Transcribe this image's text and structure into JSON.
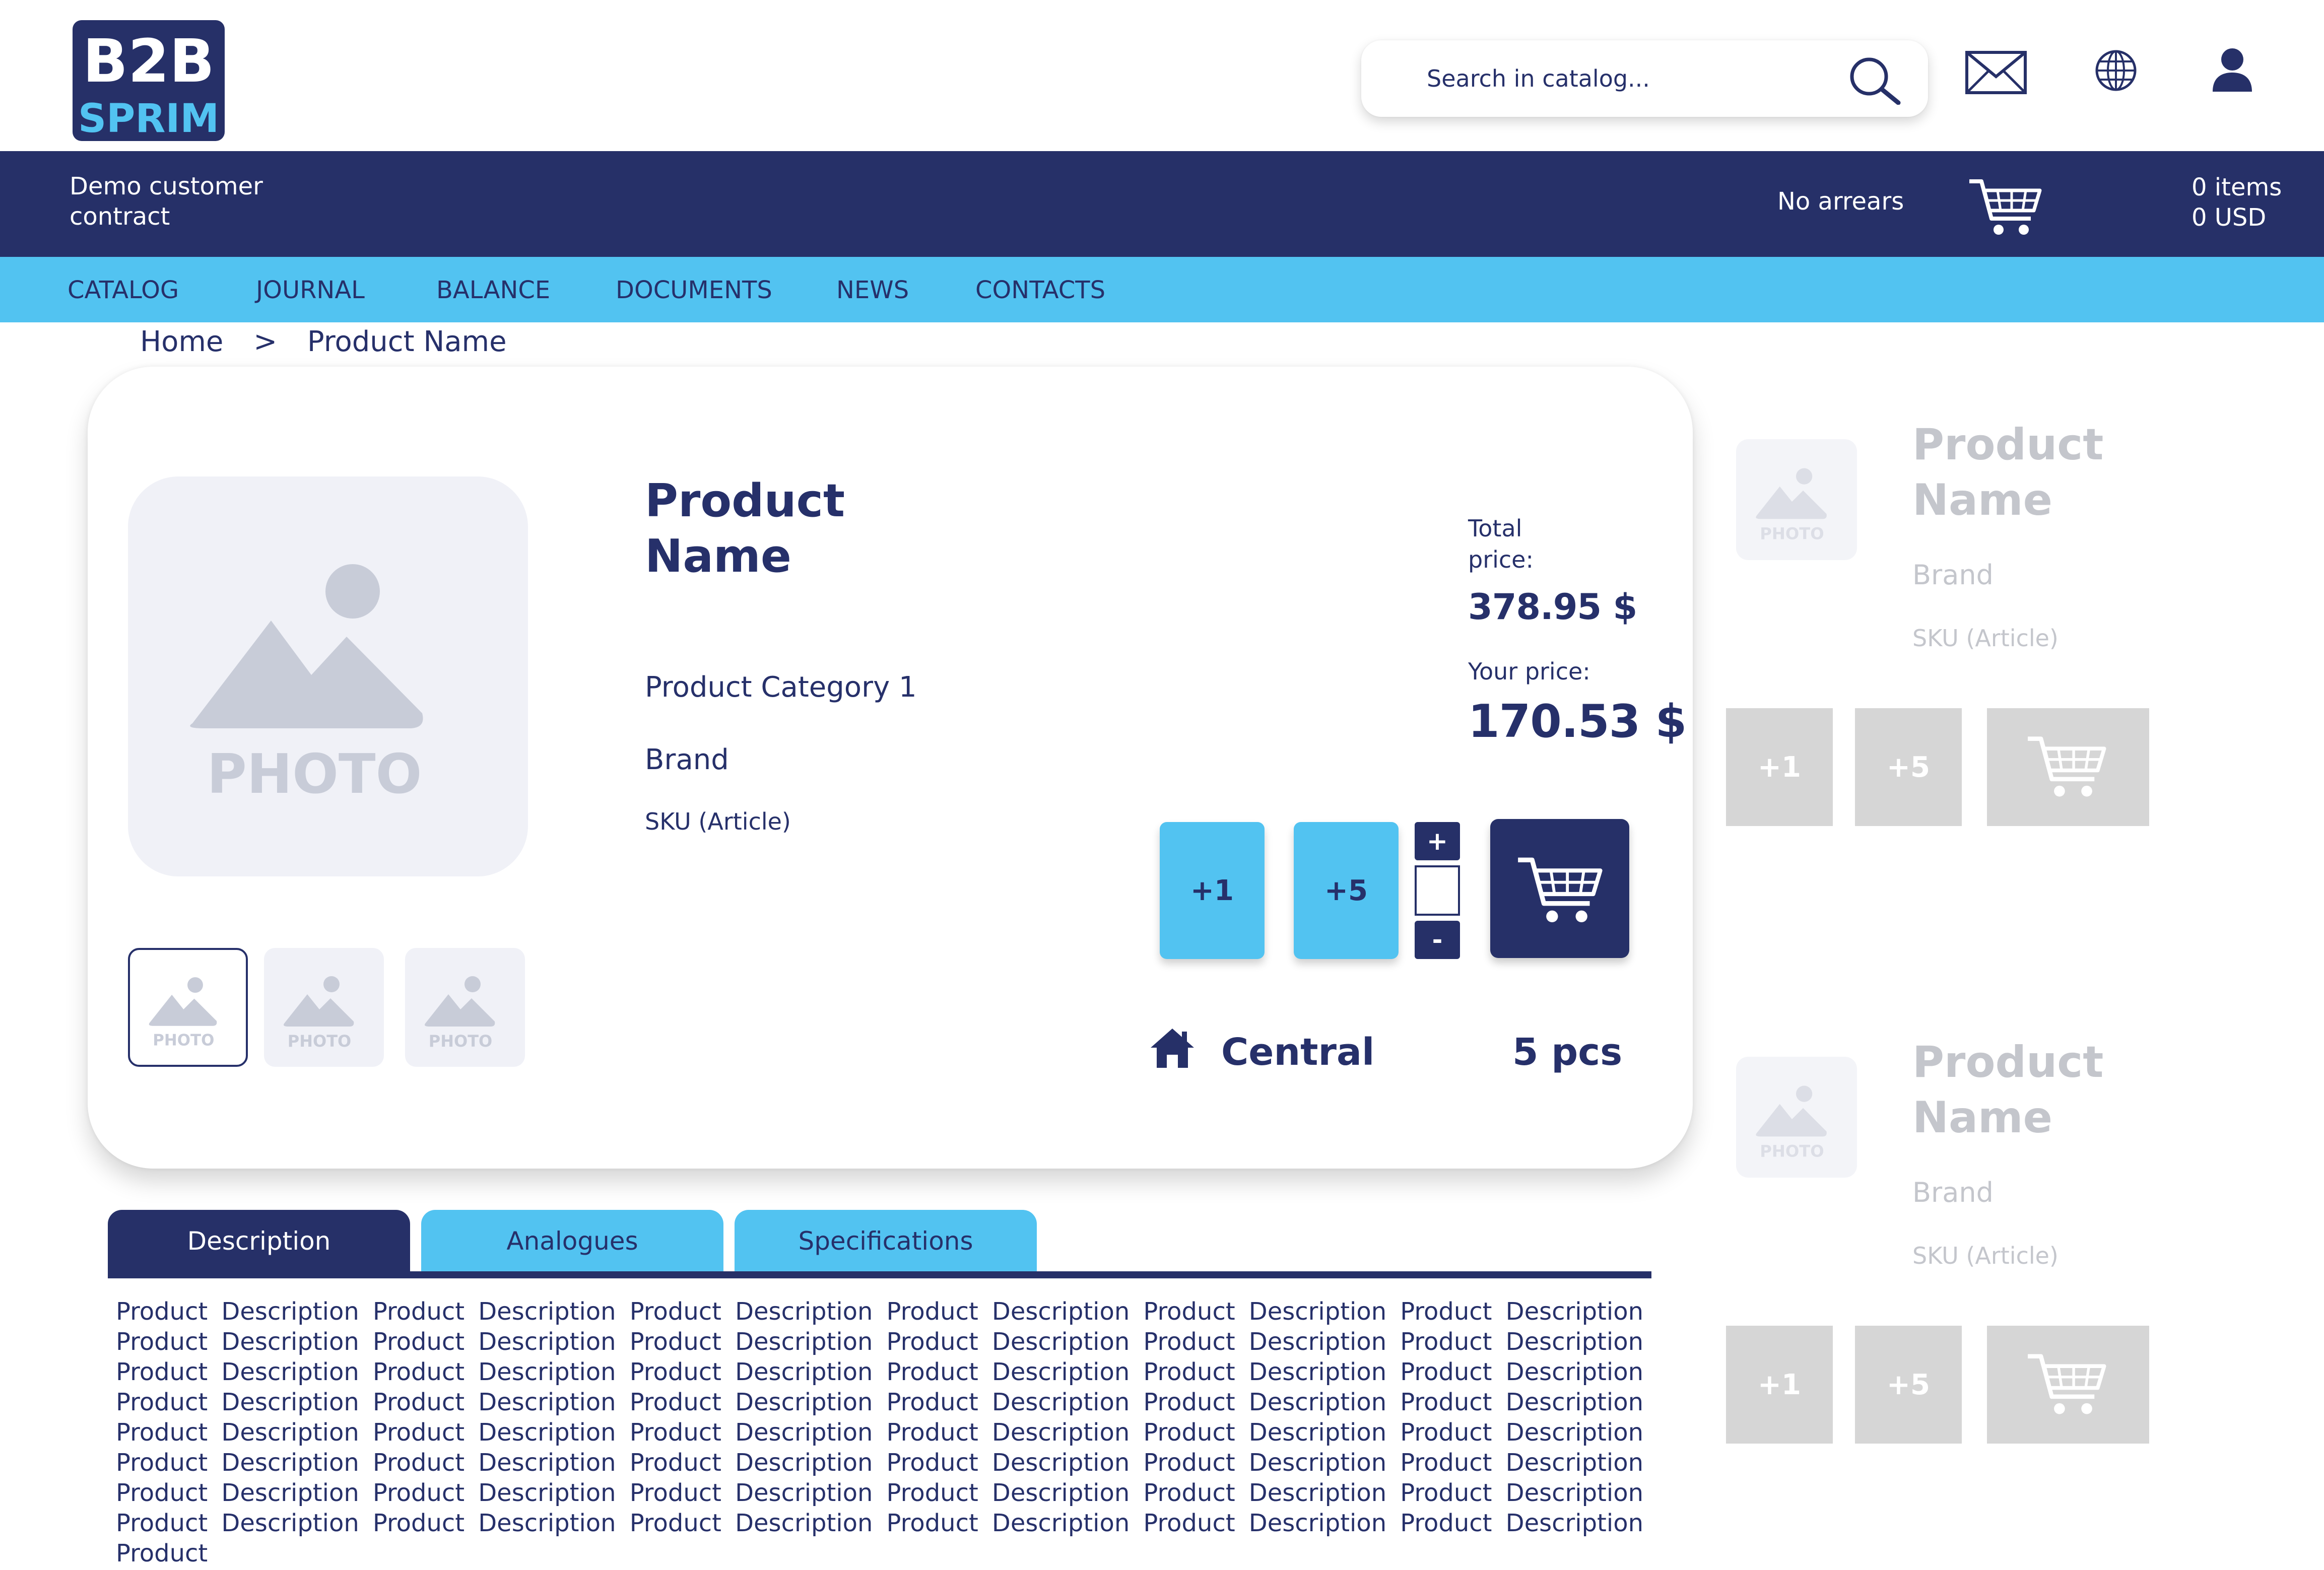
{
  "header": {
    "logo_top": "B2B",
    "logo_bottom": "SPRIM",
    "search_placeholder": "Search in catalog...",
    "icons": [
      "search-icon",
      "mail-icon",
      "globe-icon",
      "user-icon"
    ]
  },
  "contract_bar": {
    "contract_line1": "Demo customer",
    "contract_line2": "contract",
    "arrears": "No arrears",
    "cart_items": "0 items",
    "cart_total": "0 USD"
  },
  "nav": {
    "items": [
      "CATALOG",
      "JOURNAL",
      "BALANCE",
      "DOCUMENTS",
      "NEWS",
      "CONTACTS"
    ]
  },
  "breadcrumb": {
    "home": "Home",
    "separator": ">",
    "current": "Product Name"
  },
  "product": {
    "photo_label": "PHOTO",
    "thumbnails": [
      "PHOTO",
      "PHOTO",
      "PHOTO"
    ],
    "title_line1": "Product",
    "title_line2": "Name",
    "category": "Product Category 1",
    "brand": "Brand",
    "sku": "SKU (Article)",
    "total_label_line1": "Total",
    "total_label_line2": "price:",
    "total_price": "378.95 $",
    "your_price_label": "Your price:",
    "your_price": "170.53 $",
    "qty_buttons": [
      "+1",
      "+5"
    ],
    "stepper_plus": "+",
    "stepper_minus": "-",
    "stepper_value": "",
    "warehouse": "Central",
    "stock": "5 pcs"
  },
  "tabs": {
    "items": [
      "Description",
      "Analogues",
      "Specifications"
    ],
    "active": "Description",
    "description": "Product Description Product Description Product Description Product Description Product Description Product Description Product Description Product Description Product Description Product Description Product Description Product Description Product Description Product Description Product Description Product Description Product Description Product Description Product Description Product Description Product Description Product Description Product Description Product Description Product Description Product Description Product Description Product Description Product Description Product Description Product Description Product Description Product Description Product Description Product Description Product Description Product Description Product Description Product Description Product Description Product Description Product Description Product Description Product Description Product Description Product Description Product Description Product Description Product"
  },
  "related": [
    {
      "photo_label": "PHOTO",
      "name_line1": "Product",
      "name_line2": "Name",
      "brand": "Brand",
      "sku": "SKU (Article)",
      "btn1": "+1",
      "btn2": "+5"
    },
    {
      "photo_label": "PHOTO",
      "name_line1": "Product",
      "name_line2": "Name",
      "brand": "Brand",
      "sku": "SKU (Article)",
      "btn1": "+1",
      "btn2": "+5"
    }
  ],
  "colors": {
    "navy": "#263068",
    "sky": "#52c3f1",
    "placeholder_grey": "#c8ccd8",
    "disabled_grey": "#d6d6d6"
  }
}
